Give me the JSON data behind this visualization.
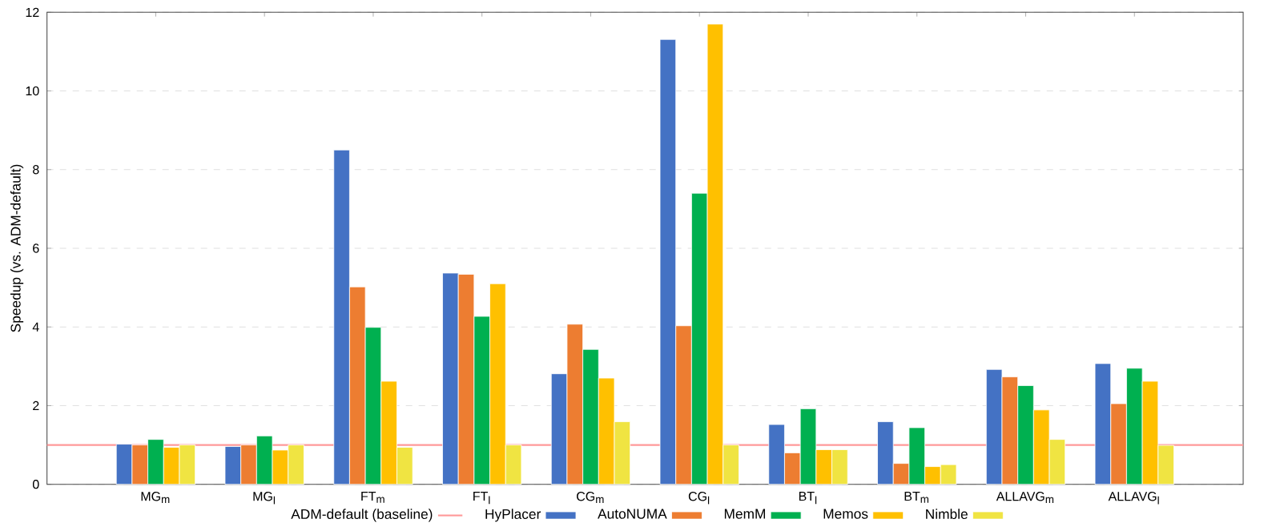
{
  "chart_data": {
    "type": "bar",
    "ylabel": "Speedup (vs. ADM-default)",
    "categories": [
      "MG$_{m}$",
      "MG$_{l}$",
      "FT$_{m}$",
      "FT$_{l}$",
      "CG$_{m}$",
      "CG$_{l}$",
      "BT$_{l}$",
      "BT$_{m}$",
      "ALLAVG$_{m}$",
      "ALLAVG$_{l}$"
    ],
    "series": [
      {
        "name": "HyPlacer",
        "color": "#4472c4",
        "values": [
          1.02,
          0.96,
          8.5,
          5.37,
          2.81,
          11.31,
          1.52,
          1.59,
          2.92,
          3.07
        ]
      },
      {
        "name": "AutoNUMA",
        "color": "#ed7d31",
        "values": [
          1.0,
          1.0,
          5.02,
          5.34,
          4.07,
          4.03,
          0.8,
          0.53,
          2.73,
          2.05
        ]
      },
      {
        "name": "MemM",
        "color": "#00b050",
        "values": [
          1.14,
          1.23,
          3.99,
          4.27,
          3.43,
          7.4,
          1.92,
          1.44,
          2.51,
          2.95
        ]
      },
      {
        "name": "Memos",
        "color": "#ffc000",
        "values": [
          0.94,
          0.87,
          2.62,
          5.1,
          2.7,
          11.7,
          0.88,
          0.45,
          1.89,
          2.62
        ]
      },
      {
        "name": "Nimble",
        "color": "#f0e442",
        "values": [
          1.0,
          1.0,
          0.94,
          1.0,
          1.59,
          1.0,
          0.88,
          0.5,
          1.14,
          0.99
        ]
      }
    ],
    "ref_lines": [
      {
        "axis": "y",
        "value": 1,
        "label": "ADM-default (baseline)",
        "color": "#ff9999"
      }
    ],
    "ylim": [
      0,
      12
    ],
    "yticks": [
      0,
      2,
      4,
      6,
      8,
      10,
      12
    ],
    "grid": "y",
    "legend": "bottom"
  }
}
